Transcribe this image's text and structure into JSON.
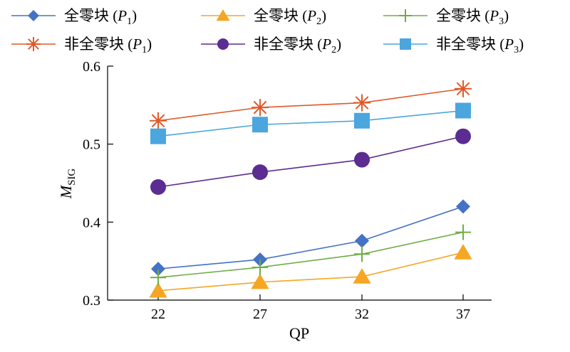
{
  "chart_data": {
    "type": "line",
    "xlabel": "QP",
    "ylabel": {
      "main": "M",
      "sub": "SIG"
    },
    "x": [
      22,
      27,
      32,
      37
    ],
    "ylim": [
      0.3,
      0.6
    ],
    "yticks": [
      "0.3",
      "0.4",
      "0.5",
      "0.6"
    ],
    "xticks": [
      "22",
      "27",
      "32",
      "37"
    ],
    "grid": false,
    "legend_position": "top",
    "series": [
      {
        "name": "全零块 (P1)",
        "name_main": "全零块 (",
        "name_var": "P",
        "name_sub": "1",
        "name_end": ")",
        "color": "#4472C4",
        "marker": "diamond",
        "values": [
          0.34,
          0.352,
          0.376,
          0.42
        ]
      },
      {
        "name": "全零块 (P2)",
        "name_main": "全零块 (",
        "name_var": "P",
        "name_sub": "2",
        "name_end": ")",
        "color": "#F5A623",
        "marker": "triangle",
        "values": [
          0.312,
          0.323,
          0.33,
          0.361
        ]
      },
      {
        "name": "全零块 (P3)",
        "name_main": "全零块 (",
        "name_var": "P",
        "name_sub": "3",
        "name_end": ")",
        "color": "#70AD47",
        "marker": "plus",
        "values": [
          0.329,
          0.342,
          0.359,
          0.387
        ]
      },
      {
        "name": "非全零块 (P1)",
        "name_main": "非全零块 (",
        "name_var": "P",
        "name_sub": "1",
        "name_end": ")",
        "color": "#E0592A",
        "marker": "asterisk",
        "values": [
          0.53,
          0.547,
          0.553,
          0.571
        ]
      },
      {
        "name": "非全零块 (P2)",
        "name_main": "非全零块 (",
        "name_var": "P",
        "name_sub": "2",
        "name_end": ")",
        "color": "#5B2C91",
        "marker": "circle",
        "values": [
          0.445,
          0.464,
          0.48,
          0.51
        ]
      },
      {
        "name": "非全零块 (P3)",
        "name_main": "非全零块 (",
        "name_var": "P",
        "name_sub": "3",
        "name_end": ")",
        "color": "#4BA6DE",
        "marker": "square",
        "values": [
          0.51,
          0.525,
          0.53,
          0.543
        ]
      }
    ]
  }
}
